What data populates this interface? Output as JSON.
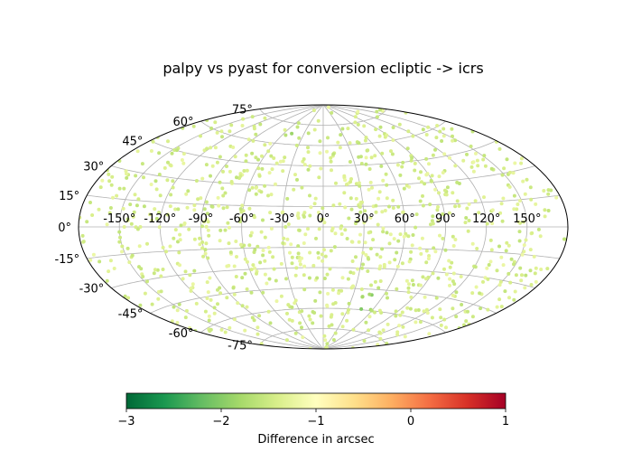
{
  "chart_data": {
    "type": "scatter",
    "projection": "aitoff",
    "title": "palpy vs pyast for conversion ecliptic -> icrs",
    "longitude_tick_labels": [
      "-150°",
      "-120°",
      "-90°",
      "-60°",
      "-30°",
      "0°",
      "30°",
      "60°",
      "90°",
      "120°",
      "150°"
    ],
    "longitude_ticks": [
      -150,
      -120,
      -90,
      -60,
      -30,
      0,
      30,
      60,
      90,
      120,
      150
    ],
    "latitude_tick_labels": [
      "75°",
      "60°",
      "45°",
      "30°",
      "15°",
      "0°",
      "-15°",
      "-30°",
      "-45°",
      "-60°",
      "-75°"
    ],
    "latitude_ticks": [
      75,
      60,
      45,
      30,
      15,
      0,
      -15,
      -30,
      -45,
      -60,
      -75
    ],
    "grid": true,
    "colorbar": {
      "label": "Difference in arcsec",
      "range": [
        -3,
        1
      ],
      "ticks": [
        -3,
        -2,
        -1,
        0,
        1
      ],
      "tick_labels": [
        "−3",
        "−2",
        "−1",
        "0",
        "1"
      ],
      "colormap": "RdYlGn_r",
      "colors": [
        "#006837",
        "#1a9850",
        "#66bd63",
        "#a6d96a",
        "#d9ef8b",
        "#ffffbf",
        "#fee08b",
        "#fdae61",
        "#f46d43",
        "#d73027",
        "#a50026"
      ]
    },
    "points": {
      "count": 1000,
      "distribution": "uniform on sphere",
      "typical_value_range": [
        -1.6,
        -1.2
      ],
      "clusters": [
        {
          "lon": -45,
          "lat": 62,
          "value": -2.2
        },
        {
          "lon": 50,
          "lat": -55,
          "value": -2.3
        }
      ]
    }
  }
}
